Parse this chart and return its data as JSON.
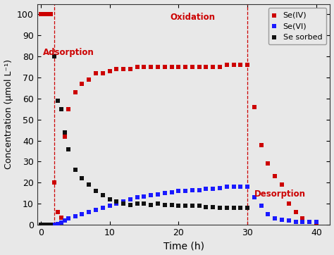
{
  "xlabel": "Time (h)",
  "ylabel": "Concentration (μmol L⁻¹)",
  "xlim": [
    -0.5,
    42
  ],
  "ylim": [
    0,
    105
  ],
  "yticks": [
    0,
    10,
    20,
    30,
    40,
    50,
    60,
    70,
    80,
    90,
    100
  ],
  "xticks": [
    0,
    10,
    20,
    30,
    40
  ],
  "vline1": 2,
  "vline2": 30,
  "adsorption_label": "Adsorption",
  "oxidation_label": "Oxidation",
  "desorption_label": "Desorption",
  "se4_color": "#cc0000",
  "se6_color": "#1a1aff",
  "sesorbed_color": "#111111",
  "vline_color": "#cc0000",
  "bg_color": "#e8e8e8",
  "se4_x": [
    0,
    0.3,
    0.6,
    1.0,
    1.5,
    2.0,
    2.5,
    3.0,
    3.5,
    4.0,
    5.0,
    6.0,
    7.0,
    8.0,
    9.0,
    10.0,
    11.0,
    12.0,
    13.0,
    14.0,
    15.0,
    16.0,
    17.0,
    18.0,
    19.0,
    20.0,
    21.0,
    22.0,
    23.0,
    24.0,
    25.0,
    26.0,
    27.0,
    28.0,
    29.0,
    30.0,
    31.0,
    32.0,
    33.0,
    34.0,
    35.0,
    36.0,
    37.0,
    38.0,
    39.0,
    40.0
  ],
  "se4_y": [
    100,
    100,
    100,
    100,
    100,
    20,
    6,
    3.5,
    42,
    55,
    63,
    67,
    69,
    72,
    72,
    73,
    74,
    74,
    74,
    75,
    75,
    75,
    75,
    75,
    75,
    75,
    75,
    75,
    75,
    75,
    75,
    75,
    76,
    76,
    76,
    76,
    56,
    38,
    29,
    23,
    19,
    10,
    6,
    3,
    1.5,
    1
  ],
  "se6_x": [
    0,
    0.3,
    0.6,
    1.0,
    1.5,
    2.0,
    2.5,
    3.0,
    3.5,
    4.0,
    5.0,
    6.0,
    7.0,
    8.0,
    9.0,
    10.0,
    11.0,
    12.0,
    13.0,
    14.0,
    15.0,
    16.0,
    17.0,
    18.0,
    19.0,
    20.0,
    21.0,
    22.0,
    23.0,
    24.0,
    25.0,
    26.0,
    27.0,
    28.0,
    29.0,
    30.0,
    31.0,
    32.0,
    33.0,
    34.0,
    35.0,
    36.0,
    37.0,
    38.0,
    39.0,
    40.0
  ],
  "se6_y": [
    0,
    0,
    0,
    0,
    0,
    0,
    0.5,
    1,
    2,
    3,
    4,
    5,
    6,
    7,
    8,
    9,
    10,
    11,
    12,
    13,
    13.5,
    14,
    14.5,
    15,
    15.5,
    16,
    16,
    16.5,
    16.5,
    17,
    17,
    17.5,
    18,
    18,
    18,
    18,
    13,
    9,
    5,
    3,
    2.5,
    2,
    1.5,
    1.5,
    1.5,
    1.5
  ],
  "sesorbed_x": [
    0,
    0.3,
    0.6,
    1.0,
    1.5,
    2.0,
    2.5,
    3.0,
    3.5,
    4.0,
    5.0,
    6.0,
    7.0,
    8.0,
    9.0,
    10.0,
    11.0,
    12.0,
    13.0,
    14.0,
    15.0,
    16.0,
    17.0,
    18.0,
    19.0,
    20.0,
    21.0,
    22.0,
    23.0,
    24.0,
    25.0,
    26.0,
    27.0,
    28.0,
    29.0,
    30.0
  ],
  "sesorbed_y": [
    0,
    0,
    0,
    0,
    0,
    80,
    59,
    55,
    44,
    36,
    26,
    22,
    19,
    16,
    14,
    12,
    11,
    10,
    9.5,
    10,
    10,
    9.5,
    10,
    9.5,
    9.5,
    9,
    9,
    9,
    9,
    8.5,
    8.5,
    8,
    8,
    8,
    8,
    8
  ]
}
